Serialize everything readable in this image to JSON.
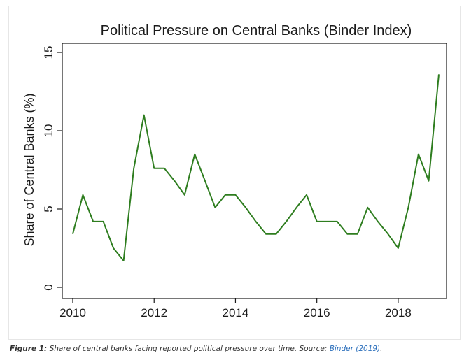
{
  "chart_data": {
    "type": "line",
    "title": "Political Pressure on Central Banks (Binder Index)",
    "xlabel": "",
    "ylabel": "Share of Central Banks (%)",
    "xlim": [
      2010,
      2019
    ],
    "ylim": [
      0,
      15
    ],
    "x_ticks": [
      2010,
      2012,
      2014,
      2016,
      2018
    ],
    "x_tick_labels": [
      "2010",
      "2012",
      "2014",
      "2016",
      "2018"
    ],
    "y_ticks": [
      0,
      5,
      10,
      15
    ],
    "y_tick_labels": [
      "0",
      "5",
      "10",
      "15"
    ],
    "grid": false,
    "legend": "none",
    "line_color": "#2e7d1f",
    "series": [
      {
        "x": [
          2010,
          2010.25,
          2010.5,
          2010.75,
          2011,
          2011.25,
          2011.5,
          2011.75,
          2012,
          2012.25,
          2012.5,
          2012.75,
          2013,
          2013.25,
          2013.5,
          2013.75,
          2014,
          2014.25,
          2014.5,
          2014.75,
          2015,
          2015.25,
          2015.5,
          2015.75,
          2016,
          2016.25,
          2016.5,
          2016.75,
          2017,
          2017.25,
          2017.5,
          2017.75,
          2018,
          2018.25,
          2018.5,
          2018.75,
          2019
        ],
        "values": [
          3.4,
          5.9,
          4.2,
          4.2,
          2.5,
          1.7,
          7.6,
          11.0,
          7.6,
          7.6,
          6.8,
          5.9,
          8.5,
          6.8,
          5.1,
          5.9,
          5.9,
          5.1,
          4.2,
          3.4,
          3.4,
          4.2,
          5.1,
          5.9,
          4.2,
          4.2,
          4.2,
          3.4,
          3.4,
          5.1,
          4.2,
          3.4,
          2.5,
          5.1,
          8.5,
          6.8,
          13.6
        ]
      }
    ]
  },
  "caption": {
    "label": "Figure 1:",
    "text": " Share of central banks facing reported political pressure over time. Source: ",
    "link": "Binder (2019)",
    "end": "."
  }
}
